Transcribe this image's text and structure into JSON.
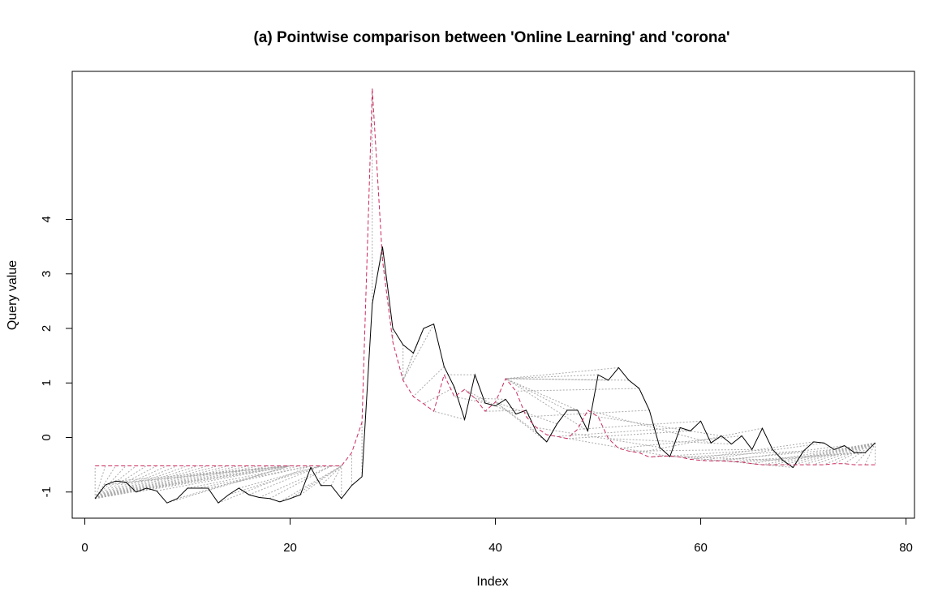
{
  "chart_data": {
    "type": "line",
    "title": "(a) Pointwise comparison between 'Online Learning' and 'corona'",
    "xlabel": "Index",
    "ylabel": "Query value",
    "xlim": [
      1,
      77
    ],
    "ylim": [
      -1.5,
      6.5
    ],
    "x_ticks": [
      0,
      20,
      40,
      60,
      80
    ],
    "y_ticks": [
      -1,
      0,
      1,
      2,
      3,
      4
    ],
    "grid": false,
    "legend": "none",
    "colors": {
      "query": "#000000",
      "reference": "#cd2a5c",
      "alignment": "#aaaaaa"
    },
    "series": [
      {
        "role": "query",
        "style": "solid",
        "values": [
          -1.12,
          -0.87,
          -0.8,
          -0.82,
          -1.0,
          -0.93,
          -0.98,
          -1.2,
          -1.12,
          -0.93,
          -0.93,
          -0.93,
          -1.2,
          -1.05,
          -0.93,
          -1.05,
          -1.1,
          -1.12,
          -1.18,
          -1.12,
          -1.05,
          -0.55,
          -0.88,
          -0.88,
          -1.12,
          -0.88,
          -0.72,
          2.45,
          3.5,
          2.0,
          1.7,
          1.55,
          2.0,
          2.08,
          1.3,
          0.92,
          0.33,
          1.15,
          0.63,
          0.58,
          0.7,
          0.43,
          0.5,
          0.1,
          -0.08,
          0.25,
          0.5,
          0.5,
          0.12,
          1.15,
          1.05,
          1.28,
          1.05,
          0.9,
          0.5,
          -0.18,
          -0.35,
          0.18,
          0.12,
          0.3,
          -0.1,
          0.03,
          -0.12,
          0.03,
          -0.22,
          0.17,
          -0.22,
          -0.42,
          -0.55,
          -0.25,
          -0.08,
          -0.1,
          -0.22,
          -0.15,
          -0.28,
          -0.28,
          -0.1
        ]
      },
      {
        "role": "reference",
        "style": "dashed",
        "values": [
          -0.52,
          -0.52,
          -0.52,
          -0.52,
          -0.52,
          -0.52,
          -0.52,
          -0.52,
          -0.52,
          -0.52,
          -0.52,
          -0.52,
          -0.52,
          -0.52,
          -0.52,
          -0.52,
          -0.52,
          -0.52,
          -0.52,
          -0.52,
          -0.52,
          -0.52,
          -0.52,
          -0.52,
          -0.52,
          -0.28,
          0.28,
          6.4,
          3.25,
          1.75,
          1.05,
          0.75,
          0.62,
          0.48,
          1.15,
          0.75,
          0.88,
          0.72,
          0.48,
          0.65,
          1.08,
          0.85,
          0.38,
          0.18,
          0.05,
          0.02,
          -0.02,
          0.15,
          0.5,
          0.38,
          -0.02,
          -0.2,
          -0.25,
          -0.28,
          -0.36,
          -0.34,
          -0.34,
          -0.36,
          -0.4,
          -0.42,
          -0.43,
          -0.43,
          -0.44,
          -0.45,
          -0.48,
          -0.5,
          -0.5,
          -0.5,
          -0.5,
          -0.5,
          -0.5,
          -0.5,
          -0.48,
          -0.48,
          -0.5,
          -0.5,
          -0.5
        ]
      }
    ],
    "alignments": [
      [
        1,
        1
      ],
      [
        1,
        2
      ],
      [
        1,
        3
      ],
      [
        1,
        4
      ],
      [
        1,
        5
      ],
      [
        1,
        6
      ],
      [
        1,
        7
      ],
      [
        1,
        8
      ],
      [
        1,
        9
      ],
      [
        1,
        10
      ],
      [
        1,
        11
      ],
      [
        1,
        12
      ],
      [
        1,
        13
      ],
      [
        1,
        14
      ],
      [
        1,
        15
      ],
      [
        1,
        16
      ],
      [
        1,
        17
      ],
      [
        1,
        18
      ],
      [
        1,
        19
      ],
      [
        2,
        20
      ],
      [
        3,
        20
      ],
      [
        4,
        20
      ],
      [
        5,
        20
      ],
      [
        6,
        20
      ],
      [
        7,
        20
      ],
      [
        8,
        20
      ],
      [
        9,
        20
      ],
      [
        10,
        21
      ],
      [
        11,
        22
      ],
      [
        12,
        22
      ],
      [
        13,
        22
      ],
      [
        14,
        23
      ],
      [
        15,
        23
      ],
      [
        16,
        23
      ],
      [
        17,
        24
      ],
      [
        18,
        24
      ],
      [
        19,
        25
      ],
      [
        20,
        25
      ],
      [
        21,
        25
      ],
      [
        22,
        25
      ],
      [
        23,
        25
      ],
      [
        24,
        25
      ],
      [
        25,
        25
      ],
      [
        26,
        26
      ],
      [
        27,
        27
      ],
      [
        28,
        28
      ],
      [
        29,
        29
      ],
      [
        30,
        30
      ],
      [
        31,
        31
      ],
      [
        32,
        31
      ],
      [
        33,
        31
      ],
      [
        34,
        31
      ],
      [
        35,
        32
      ],
      [
        36,
        33
      ],
      [
        37,
        34
      ],
      [
        38,
        35
      ],
      [
        39,
        36
      ],
      [
        40,
        37
      ],
      [
        41,
        38
      ],
      [
        42,
        38
      ],
      [
        43,
        39
      ],
      [
        44,
        40
      ],
      [
        45,
        40
      ],
      [
        46,
        40
      ],
      [
        47,
        41
      ],
      [
        48,
        41
      ],
      [
        49,
        41
      ],
      [
        50,
        41
      ],
      [
        51,
        41
      ],
      [
        52,
        41
      ],
      [
        53,
        41
      ],
      [
        54,
        42
      ],
      [
        55,
        43
      ],
      [
        56,
        44
      ],
      [
        57,
        45
      ],
      [
        58,
        46
      ],
      [
        59,
        47
      ],
      [
        60,
        48
      ],
      [
        61,
        49
      ],
      [
        62,
        50
      ],
      [
        63,
        51
      ],
      [
        64,
        52
      ],
      [
        65,
        53
      ],
      [
        66,
        54
      ],
      [
        67,
        55
      ],
      [
        68,
        56
      ],
      [
        69,
        57
      ],
      [
        70,
        58
      ],
      [
        71,
        59
      ],
      [
        72,
        60
      ],
      [
        73,
        61
      ],
      [
        74,
        62
      ],
      [
        75,
        63
      ],
      [
        76,
        64
      ],
      [
        77,
        65
      ],
      [
        77,
        66
      ],
      [
        77,
        67
      ],
      [
        77,
        68
      ],
      [
        77,
        69
      ],
      [
        77,
        70
      ],
      [
        77,
        71
      ],
      [
        77,
        72
      ],
      [
        77,
        73
      ],
      [
        77,
        74
      ],
      [
        77,
        75
      ],
      [
        77,
        76
      ],
      [
        77,
        77
      ]
    ]
  }
}
